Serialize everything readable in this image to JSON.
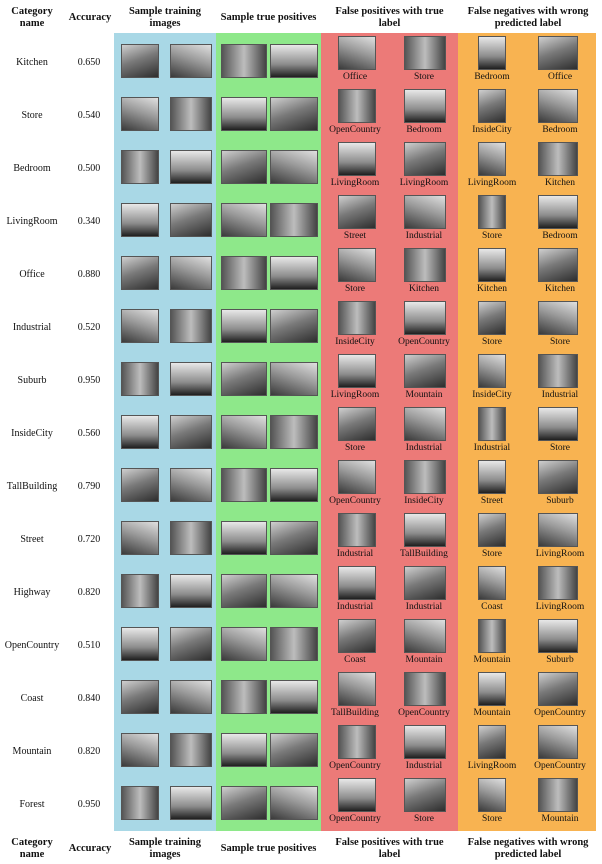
{
  "header": {
    "category": "Category\nname",
    "accuracy": "Accuracy",
    "training": "Sample training\nimages",
    "true_pos": "Sample true positives",
    "false_pos": "False positives with true\nlabel",
    "false_neg": "False negatives with wrong\npredicted label"
  },
  "rows": [
    {
      "name": "Kitchen",
      "accuracy": "0.650",
      "fp": [
        "Office",
        "Store"
      ],
      "fn": [
        "Bedroom",
        "Office"
      ]
    },
    {
      "name": "Store",
      "accuracy": "0.540",
      "fp": [
        "OpenCountry",
        "Bedroom"
      ],
      "fn": [
        "InsideCity",
        "Bedroom"
      ]
    },
    {
      "name": "Bedroom",
      "accuracy": "0.500",
      "fp": [
        "LivingRoom",
        "LivingRoom"
      ],
      "fn": [
        "LivingRoom",
        "Kitchen"
      ]
    },
    {
      "name": "LivingRoom",
      "accuracy": "0.340",
      "fp": [
        "Street",
        "Industrial"
      ],
      "fn": [
        "Store",
        "Bedroom"
      ]
    },
    {
      "name": "Office",
      "accuracy": "0.880",
      "fp": [
        "Store",
        "Kitchen"
      ],
      "fn": [
        "Kitchen",
        "Kitchen"
      ]
    },
    {
      "name": "Industrial",
      "accuracy": "0.520",
      "fp": [
        "InsideCity",
        "OpenCountry"
      ],
      "fn": [
        "Store",
        "Store"
      ]
    },
    {
      "name": "Suburb",
      "accuracy": "0.950",
      "fp": [
        "LivingRoom",
        "Mountain"
      ],
      "fn": [
        "InsideCity",
        "Industrial"
      ]
    },
    {
      "name": "InsideCity",
      "accuracy": "0.560",
      "fp": [
        "Store",
        "Industrial"
      ],
      "fn": [
        "Industrial",
        "Store"
      ]
    },
    {
      "name": "TallBuilding",
      "accuracy": "0.790",
      "fp": [
        "OpenCountry",
        "InsideCity"
      ],
      "fn": [
        "Street",
        "Suburb"
      ]
    },
    {
      "name": "Street",
      "accuracy": "0.720",
      "fp": [
        "Industrial",
        "TallBuilding"
      ],
      "fn": [
        "Store",
        "LivingRoom"
      ]
    },
    {
      "name": "Highway",
      "accuracy": "0.820",
      "fp": [
        "Industrial",
        "Industrial"
      ],
      "fn": [
        "Coast",
        "LivingRoom"
      ]
    },
    {
      "name": "OpenCountry",
      "accuracy": "0.510",
      "fp": [
        "Coast",
        "Mountain"
      ],
      "fn": [
        "Mountain",
        "Suburb"
      ]
    },
    {
      "name": "Coast",
      "accuracy": "0.840",
      "fp": [
        "TallBuilding",
        "OpenCountry"
      ],
      "fn": [
        "Mountain",
        "OpenCountry"
      ]
    },
    {
      "name": "Mountain",
      "accuracy": "0.820",
      "fp": [
        "OpenCountry",
        "Industrial"
      ],
      "fn": [
        "LivingRoom",
        "OpenCountry"
      ]
    },
    {
      "name": "Forest",
      "accuracy": "0.950",
      "fp": [
        "OpenCountry",
        "Store"
      ],
      "fn": [
        "Store",
        "Mountain"
      ]
    }
  ]
}
